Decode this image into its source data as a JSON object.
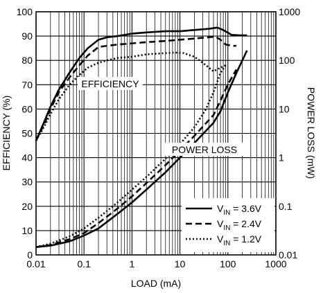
{
  "chart_data": {
    "type": "line",
    "xlabel": "LOAD (mA)",
    "ylabel_left": "EFFICIENCY (%)",
    "ylabel_right": "POWER LOSS (mW)",
    "x_scale": "log",
    "xlim": [
      0.01,
      1000
    ],
    "ylim_left": [
      0,
      100
    ],
    "ylim_right": [
      0.01,
      1000
    ],
    "y_right_scale": "log",
    "grid": true,
    "x_ticks": [
      {
        "value": 0.01,
        "label": "0.01"
      },
      {
        "value": 0.1,
        "label": "0.1"
      },
      {
        "value": 1,
        "label": "1"
      },
      {
        "value": 10,
        "label": "10"
      },
      {
        "value": 100,
        "label": "100"
      },
      {
        "value": 1000,
        "label": "1000"
      }
    ],
    "y_left_ticks": [
      {
        "value": 0,
        "label": "0"
      },
      {
        "value": 10,
        "label": "10"
      },
      {
        "value": 20,
        "label": "20"
      },
      {
        "value": 30,
        "label": "30"
      },
      {
        "value": 40,
        "label": "40"
      },
      {
        "value": 50,
        "label": "50"
      },
      {
        "value": 60,
        "label": "60"
      },
      {
        "value": 70,
        "label": "70"
      },
      {
        "value": 80,
        "label": "80"
      },
      {
        "value": 90,
        "label": "90"
      },
      {
        "value": 100,
        "label": "100"
      }
    ],
    "y_right_ticks": [
      {
        "value": 0.01,
        "label": "0.01"
      },
      {
        "value": 0.1,
        "label": "0.1"
      },
      {
        "value": 1,
        "label": "1"
      },
      {
        "value": 10,
        "label": "10"
      },
      {
        "value": 100,
        "label": "100"
      },
      {
        "value": 1000,
        "label": "1000"
      }
    ],
    "annotations": {
      "efficiency": "EFFICIENCY",
      "power_loss": "POWER LOSS"
    },
    "legend_position": "bottom-right",
    "legend": [
      {
        "main": "V",
        "sub": "IN",
        "rest": " = 3.6V",
        "dash": "solid"
      },
      {
        "main": "V",
        "sub": "IN",
        "rest": " = 2.4V",
        "dash": "dashed"
      },
      {
        "main": "V",
        "sub": "IN",
        "rest": " = 1.2V",
        "dash": "dotted"
      }
    ],
    "series": [
      {
        "axis": "left",
        "dash": "solid",
        "line_id": "eff-3.6v",
        "points": [
          [
            0.01,
            47
          ],
          [
            0.015,
            55
          ],
          [
            0.02,
            61
          ],
          [
            0.03,
            68
          ],
          [
            0.05,
            75
          ],
          [
            0.08,
            81
          ],
          [
            0.12,
            85
          ],
          [
            0.2,
            88.5
          ],
          [
            0.3,
            89.5
          ],
          [
            0.5,
            90
          ],
          [
            1,
            91
          ],
          [
            2,
            91.5
          ],
          [
            5,
            92
          ],
          [
            10,
            92
          ],
          [
            20,
            92.5
          ],
          [
            40,
            93
          ],
          [
            60,
            93.5
          ],
          [
            80,
            92.5
          ],
          [
            120,
            90.5
          ],
          [
            180,
            90.3
          ],
          [
            250,
            90.3
          ]
        ]
      },
      {
        "axis": "left",
        "dash": "dashed",
        "line_id": "eff-2.4v",
        "points": [
          [
            0.01,
            47
          ],
          [
            0.015,
            54
          ],
          [
            0.02,
            60
          ],
          [
            0.03,
            67
          ],
          [
            0.05,
            73
          ],
          [
            0.08,
            78
          ],
          [
            0.12,
            82
          ],
          [
            0.2,
            85.5
          ],
          [
            0.3,
            86
          ],
          [
            0.5,
            86.5
          ],
          [
            1,
            87
          ],
          [
            2,
            87.5
          ],
          [
            5,
            88
          ],
          [
            10,
            88.5
          ],
          [
            20,
            89
          ],
          [
            40,
            89.5
          ],
          [
            55,
            89.8
          ],
          [
            70,
            88.5
          ],
          [
            90,
            86.5
          ],
          [
            130,
            86
          ],
          [
            150,
            86
          ]
        ]
      },
      {
        "axis": "left",
        "dash": "dotted",
        "line_id": "eff-1.2v",
        "points": [
          [
            0.01,
            47
          ],
          [
            0.015,
            53
          ],
          [
            0.02,
            58
          ],
          [
            0.03,
            64
          ],
          [
            0.05,
            70
          ],
          [
            0.08,
            74
          ],
          [
            0.12,
            77
          ],
          [
            0.2,
            79
          ],
          [
            0.3,
            80
          ],
          [
            0.5,
            81
          ],
          [
            1,
            81.5
          ],
          [
            2,
            82.5
          ],
          [
            5,
            83
          ],
          [
            8,
            83.2
          ],
          [
            12,
            83
          ],
          [
            20,
            81.5
          ],
          [
            35,
            78
          ],
          [
            50,
            75.5
          ],
          [
            70,
            77
          ],
          [
            90,
            78
          ]
        ]
      },
      {
        "axis": "right",
        "dash": "solid",
        "line_id": "loss-3.6v",
        "points": [
          [
            0.01,
            0.0145
          ],
          [
            0.02,
            0.0155
          ],
          [
            0.05,
            0.019
          ],
          [
            0.1,
            0.025
          ],
          [
            0.2,
            0.035
          ],
          [
            0.5,
            0.07
          ],
          [
            1,
            0.12
          ],
          [
            2,
            0.22
          ],
          [
            5,
            0.5
          ],
          [
            10,
            1
          ],
          [
            20,
            2
          ],
          [
            50,
            5.2
          ],
          [
            70,
            9
          ],
          [
            100,
            22
          ],
          [
            150,
            55
          ],
          [
            250,
            160
          ]
        ]
      },
      {
        "axis": "right",
        "dash": "dashed",
        "line_id": "loss-2.4v",
        "points": [
          [
            0.01,
            0.0145
          ],
          [
            0.02,
            0.016
          ],
          [
            0.05,
            0.021
          ],
          [
            0.1,
            0.028
          ],
          [
            0.2,
            0.045
          ],
          [
            0.5,
            0.09
          ],
          [
            1,
            0.16
          ],
          [
            2,
            0.3
          ],
          [
            5,
            0.7
          ],
          [
            10,
            1.4
          ],
          [
            20,
            2.8
          ],
          [
            50,
            7.5
          ],
          [
            70,
            15
          ],
          [
            100,
            32
          ],
          [
            150,
            65
          ]
        ]
      },
      {
        "axis": "right",
        "dash": "dotted",
        "line_id": "loss-1.2v",
        "points": [
          [
            0.01,
            0.0145
          ],
          [
            0.02,
            0.017
          ],
          [
            0.05,
            0.024
          ],
          [
            0.1,
            0.035
          ],
          [
            0.2,
            0.058
          ],
          [
            0.5,
            0.12
          ],
          [
            1,
            0.22
          ],
          [
            2,
            0.4
          ],
          [
            5,
            0.95
          ],
          [
            10,
            1.9
          ],
          [
            20,
            4.2
          ],
          [
            35,
            10
          ],
          [
            50,
            22
          ],
          [
            70,
            55
          ],
          [
            90,
            80
          ]
        ]
      }
    ]
  }
}
